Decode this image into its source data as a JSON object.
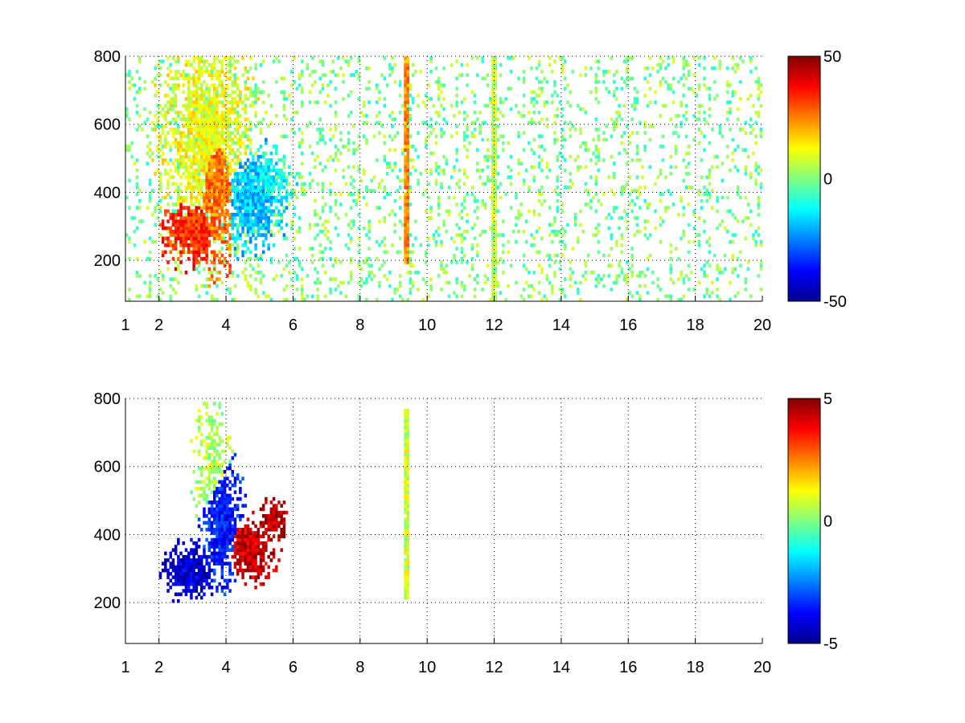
{
  "chart_data": [
    {
      "type": "heatmap",
      "colormap": "jet",
      "grid": true,
      "grid_style": "dotted",
      "xlim": [
        1,
        20
      ],
      "ylim": [
        80,
        800
      ],
      "x_ticks": [
        {
          "value": 1,
          "label": "1"
        },
        {
          "value": 2,
          "label": "2"
        },
        {
          "value": 4,
          "label": "4"
        },
        {
          "value": 6,
          "label": "6"
        },
        {
          "value": 8,
          "label": "8"
        },
        {
          "value": 10,
          "label": "10"
        },
        {
          "value": 12,
          "label": "12"
        },
        {
          "value": 14,
          "label": "14"
        },
        {
          "value": 16,
          "label": "16"
        },
        {
          "value": 18,
          "label": "18"
        },
        {
          "value": 20,
          "label": "20"
        }
      ],
      "y_ticks": [
        {
          "value": 200,
          "label": "200"
        },
        {
          "value": 400,
          "label": "400"
        },
        {
          "value": 600,
          "label": "600"
        },
        {
          "value": 800,
          "label": "800"
        }
      ],
      "clim": [
        -50,
        50
      ],
      "colorbar_ticks": [
        {
          "value": 50,
          "label": "50"
        },
        {
          "value": 0,
          "label": "0"
        },
        {
          "value": -50,
          "label": "-50"
        }
      ],
      "features": [
        {
          "kind": "blob",
          "x": 3.0,
          "y": 285,
          "sx": 0.5,
          "sy": 55,
          "value": 33,
          "weight": 1.0
        },
        {
          "kind": "blob",
          "x": 3.7,
          "y": 420,
          "sx": 0.35,
          "sy": 140,
          "value": 26,
          "weight": 0.9
        },
        {
          "kind": "blob",
          "x": 3.4,
          "y": 560,
          "sx": 0.8,
          "sy": 180,
          "value": 11,
          "weight": 0.75
        },
        {
          "kind": "blob",
          "x": 4.8,
          "y": 380,
          "sx": 0.6,
          "sy": 90,
          "value": -18,
          "weight": 0.8
        },
        {
          "kind": "blob",
          "x": 5.3,
          "y": 430,
          "sx": 0.4,
          "sy": 60,
          "value": -13,
          "weight": 0.7
        },
        {
          "kind": "line",
          "x": 9.4,
          "y_from": 190,
          "y_to": 800,
          "value": 24
        },
        {
          "kind": "line",
          "x": 12.0,
          "y_from": 80,
          "y_to": 800,
          "value": 7
        }
      ],
      "background": {
        "value_range": [
          -10,
          10
        ],
        "density": 0.14
      }
    },
    {
      "type": "heatmap",
      "colormap": "jet",
      "grid": true,
      "grid_style": "dotted",
      "xlim": [
        1,
        20
      ],
      "ylim": [
        80,
        800
      ],
      "x_ticks": [
        {
          "value": 1,
          "label": "1"
        },
        {
          "value": 2,
          "label": "2"
        },
        {
          "value": 4,
          "label": "4"
        },
        {
          "value": 6,
          "label": "6"
        },
        {
          "value": 8,
          "label": "8"
        },
        {
          "value": 10,
          "label": "10"
        },
        {
          "value": 12,
          "label": "12"
        },
        {
          "value": 14,
          "label": "14"
        },
        {
          "value": 16,
          "label": "16"
        },
        {
          "value": 18,
          "label": "18"
        },
        {
          "value": 20,
          "label": "20"
        }
      ],
      "y_ticks": [
        {
          "value": 200,
          "label": "200"
        },
        {
          "value": 400,
          "label": "400"
        },
        {
          "value": 600,
          "label": "600"
        },
        {
          "value": 800,
          "label": "800"
        }
      ],
      "clim": [
        -5,
        5
      ],
      "colorbar_ticks": [
        {
          "value": 5,
          "label": "5"
        },
        {
          "value": 0,
          "label": "0"
        },
        {
          "value": -5,
          "label": "-5"
        }
      ],
      "features": [
        {
          "kind": "blob",
          "x": 2.9,
          "y": 290,
          "sx": 0.45,
          "sy": 45,
          "value": -4.2,
          "weight": 1.0
        },
        {
          "kind": "blob",
          "x": 3.9,
          "y": 430,
          "sx": 0.35,
          "sy": 110,
          "value": -3.5,
          "weight": 0.9
        },
        {
          "kind": "blob",
          "x": 3.6,
          "y": 600,
          "sx": 0.35,
          "sy": 110,
          "value": 0.5,
          "weight": 0.55
        },
        {
          "kind": "blob",
          "x": 4.7,
          "y": 360,
          "sx": 0.45,
          "sy": 55,
          "value": 4.3,
          "weight": 0.95
        },
        {
          "kind": "blob",
          "x": 5.4,
          "y": 440,
          "sx": 0.25,
          "sy": 35,
          "value": 4.5,
          "weight": 0.85
        },
        {
          "kind": "line",
          "x": 9.4,
          "y_from": 215,
          "y_to": 770,
          "value": 0.8
        }
      ],
      "background": {
        "value_range": [
          0,
          0
        ],
        "density": 0
      }
    }
  ]
}
